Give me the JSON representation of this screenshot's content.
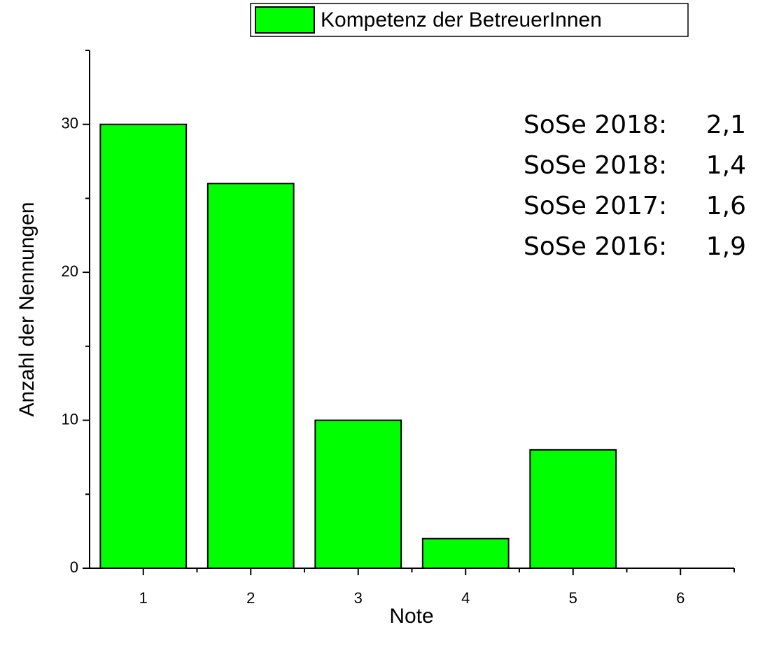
{
  "chart_data": {
    "type": "bar",
    "xlabel": "Note",
    "ylabel": "Anzahl der Nennungen",
    "categories": [
      "1",
      "2",
      "3",
      "4",
      "5",
      "6"
    ],
    "series": [
      {
        "name": "Kompetenz der BetreuerInnen",
        "color": "#00ff00",
        "values": [
          30,
          26,
          10,
          2,
          8,
          0
        ]
      }
    ],
    "ylim": [
      0,
      35
    ],
    "yticks": [
      0,
      10,
      20,
      30
    ],
    "yminorticks": [
      5,
      15,
      25,
      35
    ],
    "grid": false,
    "legend": "top",
    "annotations": [
      {
        "label": "SoSe 2018:",
        "value": "2,1",
        "color": "#ff0000"
      },
      {
        "label": "SoSe 2018:",
        "value": "1,4",
        "color": "#000000"
      },
      {
        "label": "SoSe 2017:",
        "value": "1,6",
        "color": "#000000"
      },
      {
        "label": "SoSe 2016:",
        "value": "1,9",
        "color": "#000000"
      }
    ]
  }
}
